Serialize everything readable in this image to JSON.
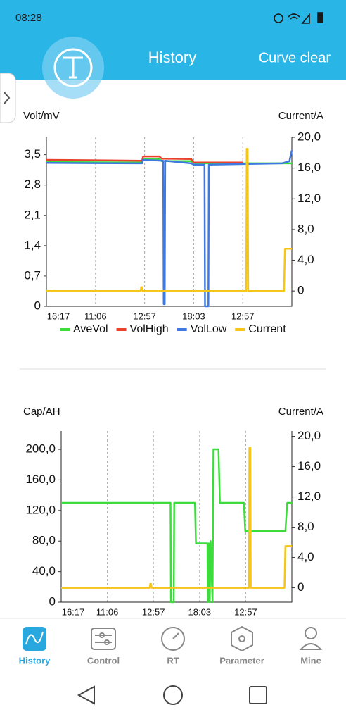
{
  "status_bar": {
    "time": "08:28"
  },
  "header": {
    "title": "History",
    "action": "Curve clear"
  },
  "chart_data": [
    {
      "type": "line",
      "ylabel": "Volt/mV",
      "y2label": "Current/A",
      "legend": true,
      "xlim": [
        0,
        5
      ],
      "xticks": [
        {
          "value": 0,
          "label": "16:17"
        },
        {
          "value": 1,
          "label": "11:06"
        },
        {
          "value": 2,
          "label": "12:57"
        },
        {
          "value": 3,
          "label": "18:03"
        },
        {
          "value": 4,
          "label": "12:57"
        }
      ],
      "ylim": [
        0,
        3.9
      ],
      "yticks": [
        0,
        {
          "value": 0.7,
          "label": "0,7"
        },
        {
          "value": 1.4,
          "label": "1,4"
        },
        {
          "value": 2.1,
          "label": "2,1"
        },
        {
          "value": 2.8,
          "label": "2,8"
        },
        {
          "value": 3.5,
          "label": "3,5"
        }
      ],
      "y2lim": [
        -2,
        20
      ],
      "y2ticks": [
        0,
        {
          "value": 4,
          "label": "4,0"
        },
        {
          "value": 8,
          "label": "8,0"
        },
        {
          "value": 12,
          "label": "12,0"
        },
        {
          "value": 16,
          "label": "16,0"
        },
        {
          "value": 20,
          "label": "20,0"
        }
      ],
      "series": [
        {
          "name": "AveVol",
          "color": "#3ddc3d",
          "x": [
            0,
            1.95,
            1.97,
            2.3,
            2.35,
            2.95,
            3.0,
            4.9,
            5
          ],
          "values": [
            3.33,
            3.32,
            3.4,
            3.4,
            3.35,
            3.35,
            3.3,
            3.3,
            3.3
          ]
        },
        {
          "name": "VolHigh",
          "color": "#e8412c",
          "x": [
            0,
            1.95,
            1.97,
            2.3,
            2.35,
            2.95,
            3.0,
            4.0
          ],
          "values": [
            3.38,
            3.36,
            3.46,
            3.46,
            3.41,
            3.4,
            3.32,
            3.32
          ]
        },
        {
          "name": "VolLow",
          "color": "#3f78e0",
          "x": [
            0,
            1.95,
            1.97,
            2.38,
            2.39,
            2.41,
            2.42,
            2.95,
            3.0,
            3.22,
            3.23,
            3.3,
            3.31,
            4.8,
            4.95,
            5
          ],
          "values": [
            3.31,
            3.3,
            3.38,
            3.36,
            0.05,
            0.05,
            3.36,
            3.3,
            3.27,
            3.27,
            0,
            0,
            3.27,
            3.3,
            3.35,
            3.6
          ]
        },
        {
          "name": "Current",
          "color": "#f5c518",
          "axis": "y2",
          "x": [
            0,
            1.92,
            1.93,
            1.95,
            1.96,
            4.07,
            4.08,
            4.1,
            4.11,
            4.84,
            4.86,
            5
          ],
          "values": [
            0,
            0,
            0.5,
            0.5,
            0,
            0,
            18.5,
            18.5,
            0,
            0,
            5.5,
            5.5
          ]
        }
      ]
    },
    {
      "type": "line",
      "ylabel": "Cap/AH",
      "y2label": "Current/A",
      "legend": false,
      "xlim": [
        0,
        5
      ],
      "xticks": [
        {
          "value": 0,
          "label": "16:17"
        },
        {
          "value": 1,
          "label": "11:06"
        },
        {
          "value": 2,
          "label": "12:57"
        },
        {
          "value": 3,
          "label": "18:03"
        },
        {
          "value": 4,
          "label": "12:57"
        }
      ],
      "ylim": [
        0,
        224
      ],
      "yticks": [
        0,
        {
          "value": 40,
          "label": "40,0"
        },
        {
          "value": 80,
          "label": "80,0"
        },
        {
          "value": 120,
          "label": "120,0"
        },
        {
          "value": 160,
          "label": "160,0"
        },
        {
          "value": 200,
          "label": "200,0"
        }
      ],
      "y2lim": [
        -1.9,
        20.7
      ],
      "y2ticks": [
        0,
        {
          "value": 4,
          "label": "4,0"
        },
        {
          "value": 8,
          "label": "8,0"
        },
        {
          "value": 12,
          "label": "12,0"
        },
        {
          "value": 16,
          "label": "16,0"
        },
        {
          "value": 20,
          "label": "20,0"
        }
      ],
      "series": [
        {
          "color": "#3ddc3d",
          "x": [
            0,
            2.37,
            2.38,
            2.44,
            2.45,
            2.9,
            2.92,
            3.17,
            3.18,
            3.2,
            3.22,
            3.24,
            3.28,
            3.3,
            3.41,
            3.44,
            3.96,
            3.99,
            4.86,
            4.9,
            5
          ],
          "values": [
            130,
            130,
            0,
            0,
            130,
            130,
            77,
            77,
            0,
            77,
            0,
            80,
            0,
            200,
            200,
            130,
            130,
            93,
            93,
            130,
            130
          ]
        },
        {
          "color": "#f5c518",
          "axis": "y2",
          "x": [
            0,
            1.92,
            1.93,
            1.95,
            1.96,
            4.07,
            4.08,
            4.1,
            4.11,
            4.84,
            4.86,
            5
          ],
          "values": [
            0,
            0,
            0.5,
            0.5,
            0,
            0,
            18.5,
            18.5,
            0,
            0,
            5.5,
            5.5
          ]
        }
      ]
    }
  ],
  "nav": {
    "items": [
      "History",
      "Control",
      "RT",
      "Parameter",
      "Mine"
    ],
    "active": 0
  }
}
